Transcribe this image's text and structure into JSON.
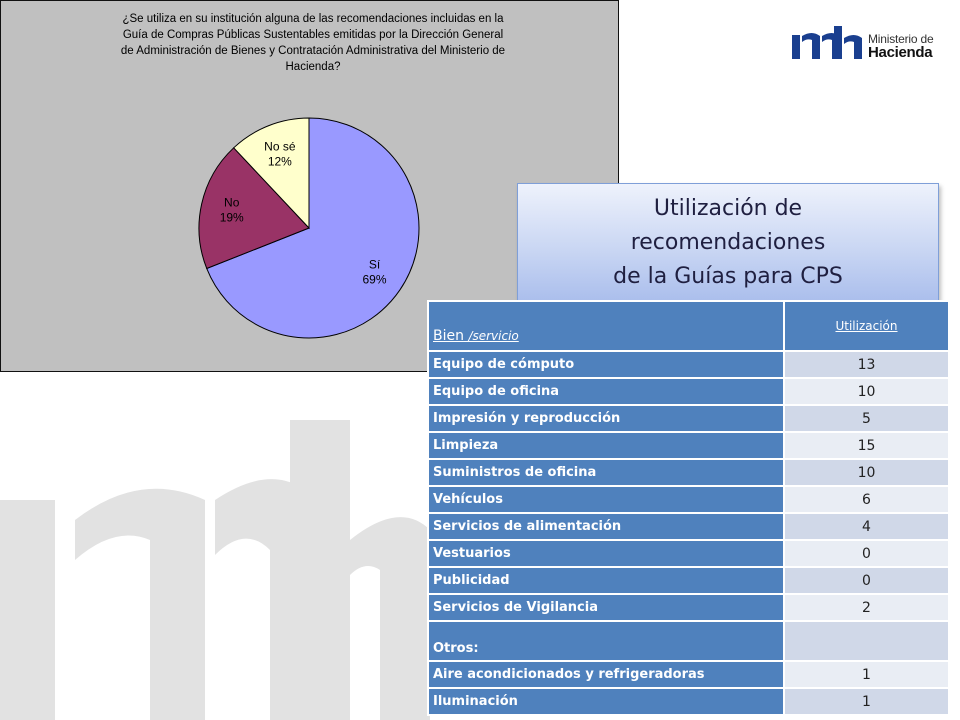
{
  "logo": {
    "line1": "Ministerio de",
    "line2": "Hacienda",
    "brand_color": "#1a3f8f"
  },
  "chart_data": {
    "type": "pie",
    "title": "¿Se utiliza en su institución alguna de las recomendaciones incluidas en la Guía de Compras Públicas Sustentables emitidas por la Dirección General de Administración de Bienes y Contratación Administrativa del Ministerio de Hacienda?",
    "title_lines": [
      "¿Se utiliza en su institución alguna de las recomendaciones incluidas en la",
      "Guía de Compras Públicas Sustentables emitidas por la Dirección General",
      "de Administración de Bienes y Contratación Administrativa del Ministerio de",
      "Hacienda?"
    ],
    "slices": [
      {
        "label": "Sí",
        "value": 69,
        "display": "69%",
        "color": "#9999ff"
      },
      {
        "label": "No",
        "value": 19,
        "display": "19%",
        "color": "#993366"
      },
      {
        "label": "No sé",
        "value": 12,
        "display": "12%",
        "color": "#ffffcc"
      }
    ],
    "background": "#c0c0c0"
  },
  "title_box": {
    "lines": [
      "Utilización de",
      "recomendaciones",
      "de la Guías para CPS"
    ]
  },
  "table": {
    "header_bien": "Bien",
    "header_bien_small": "/servicio",
    "header_util": "Utilización",
    "rows": [
      {
        "name": "Equipo de cómputo",
        "value": "13"
      },
      {
        "name": "Equipo de oficina",
        "value": "10"
      },
      {
        "name": "Impresión y reproducción",
        "value": "5"
      },
      {
        "name": "Limpieza",
        "value": "15"
      },
      {
        "name": "Suministros de oficina",
        "value": "10"
      },
      {
        "name": "Vehículos",
        "value": "6"
      },
      {
        "name": "Servicios de alimentación",
        "value": "4"
      },
      {
        "name": "Vestuarios",
        "value": "0"
      },
      {
        "name": "Publicidad",
        "value": "0"
      },
      {
        "name": "Servicios de Vigilancia",
        "value": "2"
      },
      {
        "name": "Otros:",
        "value": ""
      },
      {
        "name": "Aire acondicionados y refrigeradoras",
        "value": "1"
      },
      {
        "name": "Iluminación",
        "value": "1"
      }
    ]
  }
}
